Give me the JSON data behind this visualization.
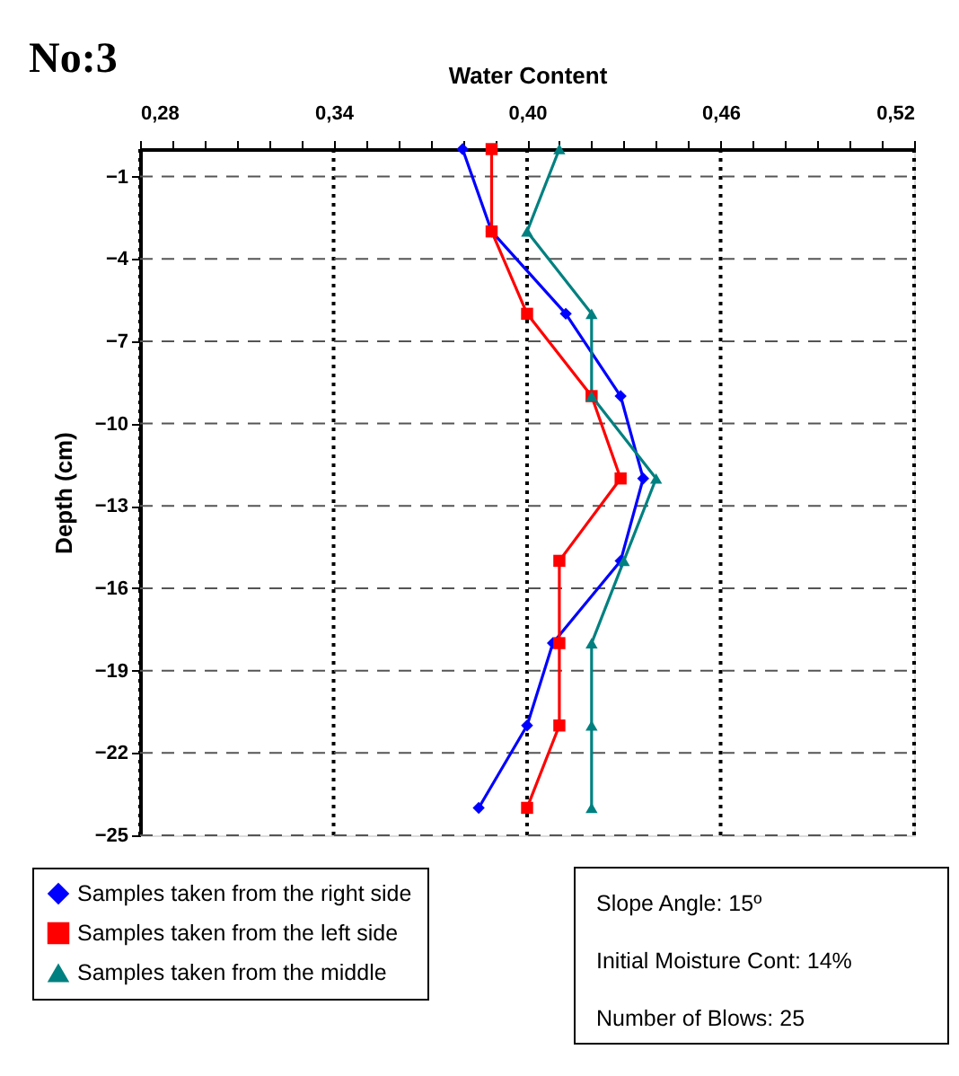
{
  "chart_data": {
    "type": "line",
    "orientation": "horizontal",
    "title": "No:3",
    "xlabel": "Water Content",
    "ylabel": "Depth (cm)",
    "x": [
      0,
      -3,
      -6,
      -9,
      -12,
      -15,
      -18,
      -21,
      -24
    ],
    "series": [
      {
        "name": "Samples taken from the right side",
        "color": "#0000ff",
        "marker": "diamond",
        "values": [
          0.38,
          0.389,
          0.412,
          0.429,
          0.436,
          0.429,
          0.408,
          0.4,
          0.385
        ]
      },
      {
        "name": "Samples taken from the left side",
        "color": "#ff0000",
        "marker": "square",
        "values": [
          0.389,
          0.389,
          0.4,
          0.42,
          0.429,
          0.41,
          0.41,
          0.41,
          0.4
        ]
      },
      {
        "name": "Samples taken from the middle",
        "color": "#008080",
        "marker": "triangle",
        "values": [
          0.41,
          0.4,
          0.42,
          0.42,
          0.44,
          0.43,
          0.42,
          0.42,
          0.42
        ]
      }
    ],
    "xlim": [
      0.28,
      0.52
    ],
    "xticks": [
      {
        "value": 0.28,
        "label": "0,28"
      },
      {
        "value": 0.29,
        "label": null
      },
      {
        "value": 0.3,
        "label": null
      },
      {
        "value": 0.31,
        "label": null
      },
      {
        "value": 0.32,
        "label": null
      },
      {
        "value": 0.33,
        "label": null
      },
      {
        "value": 0.34,
        "label": "0,34"
      },
      {
        "value": 0.35,
        "label": null
      },
      {
        "value": 0.36,
        "label": null
      },
      {
        "value": 0.37,
        "label": null
      },
      {
        "value": 0.38,
        "label": null
      },
      {
        "value": 0.39,
        "label": null
      },
      {
        "value": 0.4,
        "label": "0,40"
      },
      {
        "value": 0.41,
        "label": null
      },
      {
        "value": 0.42,
        "label": null
      },
      {
        "value": 0.43,
        "label": null
      },
      {
        "value": 0.44,
        "label": null
      },
      {
        "value": 0.45,
        "label": null
      },
      {
        "value": 0.46,
        "label": "0,46"
      },
      {
        "value": 0.47,
        "label": null
      },
      {
        "value": 0.48,
        "label": null
      },
      {
        "value": 0.49,
        "label": null
      },
      {
        "value": 0.5,
        "label": null
      },
      {
        "value": 0.51,
        "label": null
      },
      {
        "value": 0.52,
        "label": "0,52"
      }
    ],
    "ylim": [
      -25,
      0
    ],
    "yticks": [
      -1,
      -4,
      -7,
      -10,
      -13,
      -16,
      -19,
      -22,
      -25
    ],
    "grid": true,
    "legend": "bottom left",
    "line_style": "solid",
    "annotations": [
      "Slope Angle: 15º",
      "Initial Moisture Cont: 14%",
      "Number of Blows: 25"
    ]
  }
}
